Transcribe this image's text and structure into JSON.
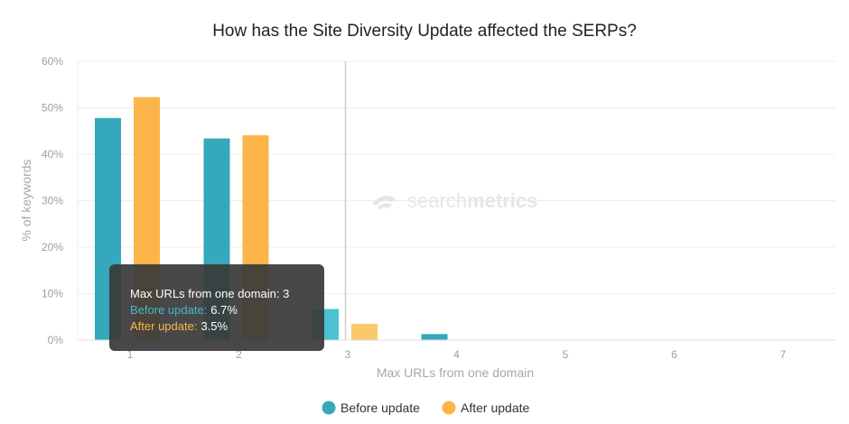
{
  "chart_data": {
    "type": "bar",
    "title": "How has the Site Diversity Update affected the SERPs?",
    "xlabel": "Max URLs from one domain",
    "ylabel": "% of keywords",
    "categories": [
      "1",
      "2",
      "3",
      "4",
      "5",
      "6",
      "7"
    ],
    "series": [
      {
        "name": "Before update",
        "color": "#35a8bb",
        "values": [
          47.8,
          43.4,
          6.7,
          1.3,
          0,
          0,
          0
        ]
      },
      {
        "name": "After update",
        "color": "#fbb549",
        "values": [
          52.3,
          44.1,
          3.5,
          0,
          0,
          0,
          0
        ]
      }
    ],
    "yticks": [
      "0%",
      "10%",
      "20%",
      "30%",
      "40%",
      "50%",
      "60%"
    ],
    "ylim": [
      0,
      60
    ],
    "grid": true,
    "legend": "bottom-center",
    "highlight_category": "3"
  },
  "tooltip": {
    "header": "Max URLs from one domain: 3",
    "before_label": "Before update:",
    "before_value": "6.7%",
    "after_label": "After update:",
    "after_value": "3.5%"
  },
  "watermark": {
    "brand_light": "search",
    "brand_bold": "metrics"
  }
}
